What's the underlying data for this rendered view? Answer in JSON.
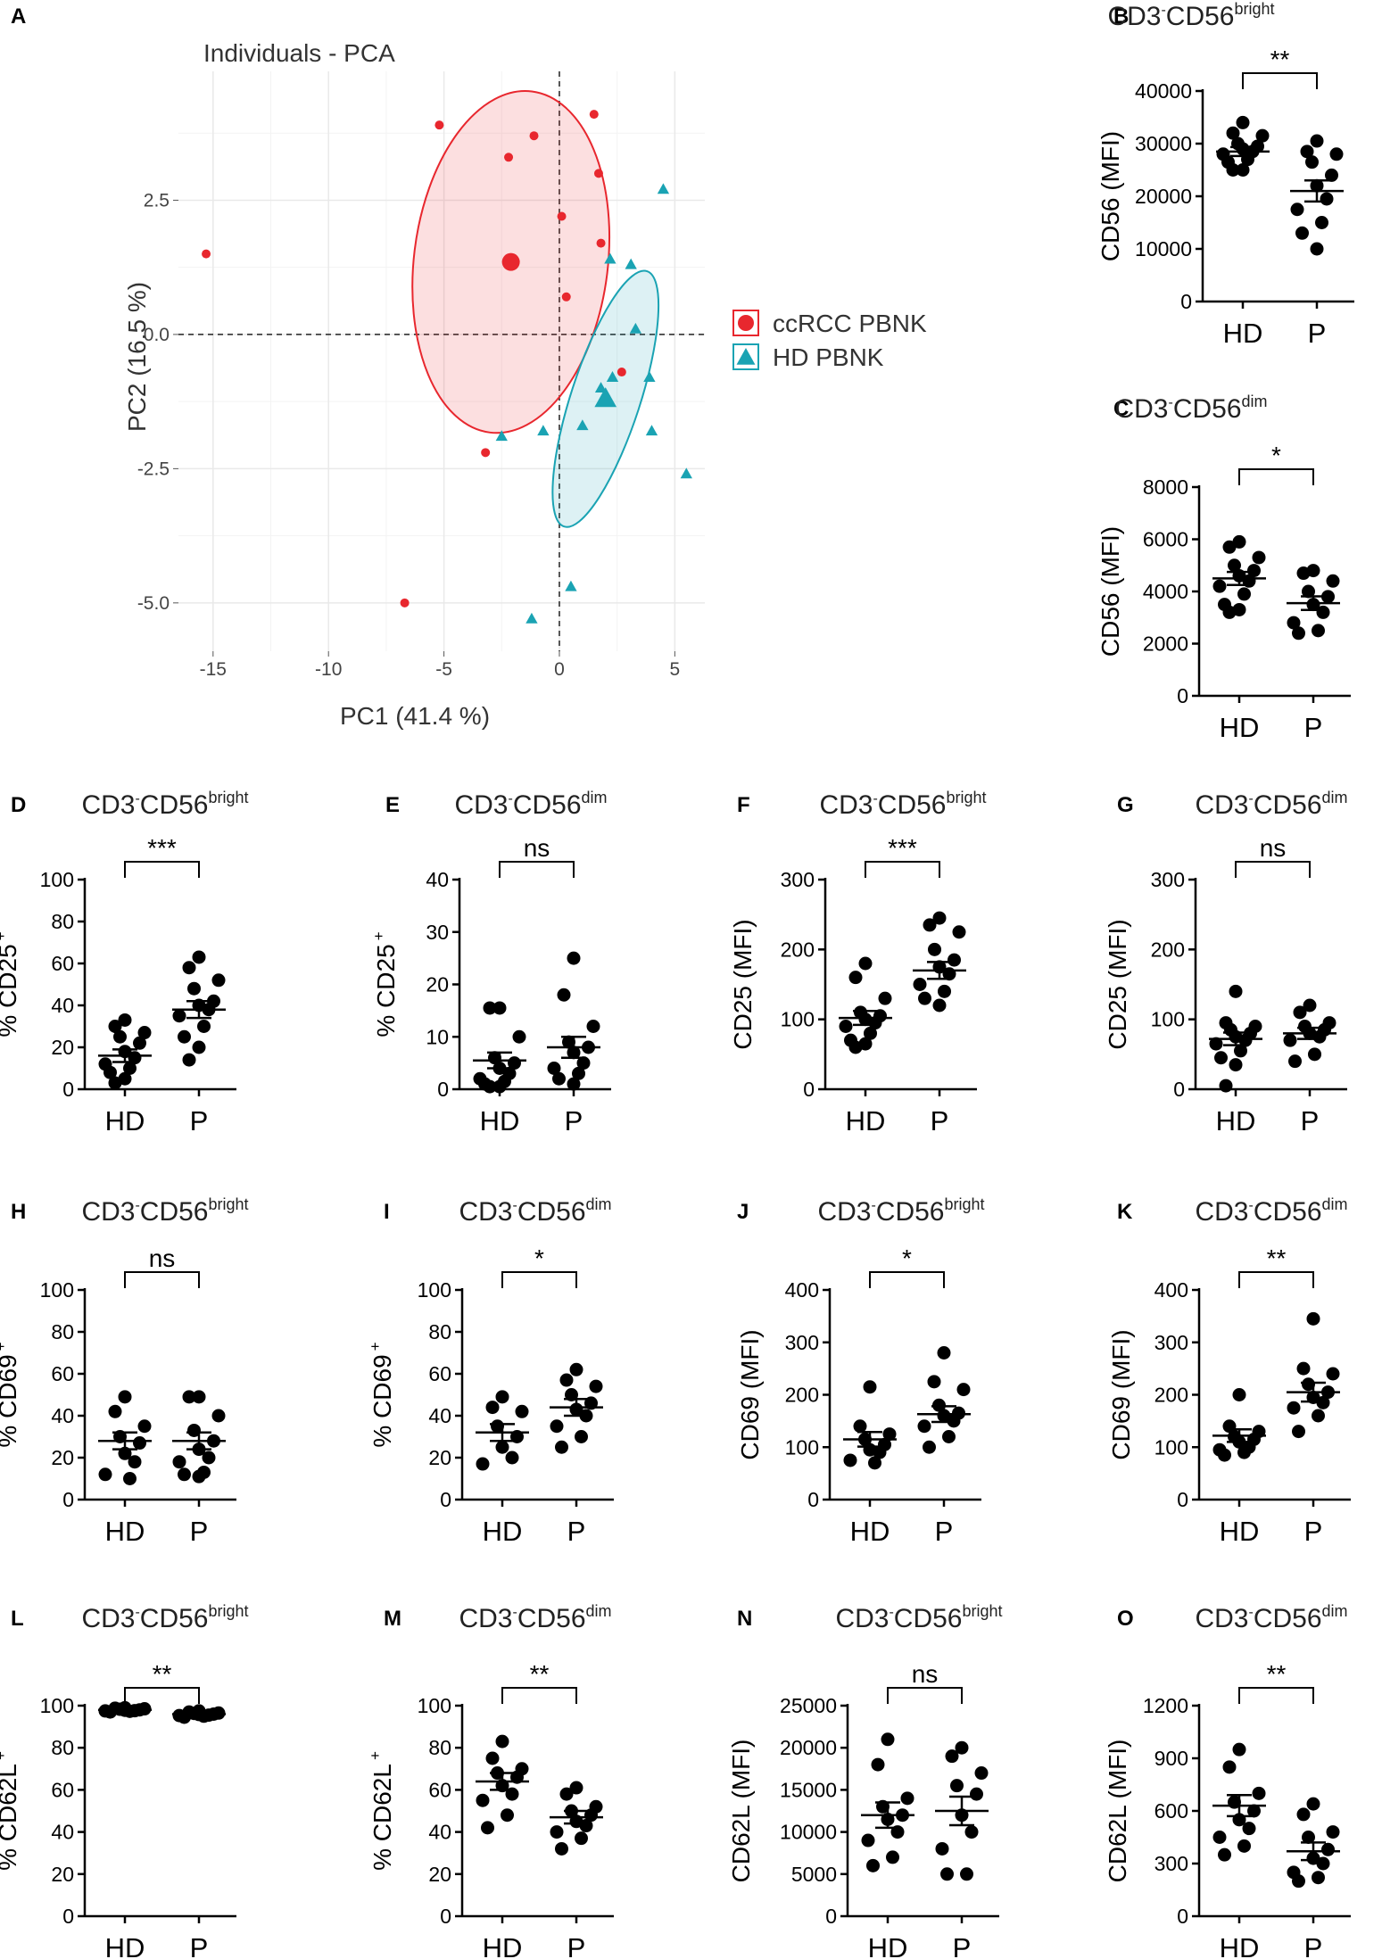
{
  "chart_data": [
    {
      "panel": "A",
      "type": "scatter",
      "title": "Individuals - PCA",
      "xlabel": "PC1 (41.4 %)",
      "ylabel": "PC2 (16.5 %)",
      "xlim": [
        -16.5,
        6.3
      ],
      "ylim": [
        -5.9,
        4.9
      ],
      "xticks": [
        -15,
        -10,
        -5,
        0,
        5
      ],
      "xtick_labels": [
        "-15",
        "-10",
        "-5",
        "0",
        "5"
      ],
      "yticks": [
        2.5,
        0,
        -2.5,
        -5
      ],
      "ytick_labels": [
        "2.5",
        "0.0",
        "-2.5",
        "-5.0"
      ],
      "colors": {
        "ccrcc": "#e8272e",
        "hd": "#1aa3b3"
      },
      "series": [
        {
          "name": "ccRCC PBNK",
          "color": "#e8272e",
          "marker": "circle",
          "x": [
            -5.2,
            -1.1,
            1.5,
            -2.2,
            1.7,
            0.1,
            1.8,
            0.3,
            2.7,
            -3.2,
            -15.3,
            -6.7
          ],
          "y": [
            3.9,
            3.7,
            4.1,
            3.3,
            3.0,
            2.2,
            1.7,
            0.7,
            -0.7,
            -2.2,
            1.5,
            -5.0
          ],
          "centroid": [
            -2.1,
            1.35
          ],
          "ellipse": {
            "cx": -2.1,
            "cy": 1.35,
            "rx": 4.2,
            "ry": 3.2,
            "angle": 7
          }
        },
        {
          "name": "HD PBNK",
          "color": "#1aa3b3",
          "marker": "triangle",
          "x": [
            4.5,
            2.2,
            3.1,
            3.3,
            2.3,
            3.9,
            1.8,
            1.0,
            -0.7,
            4.0,
            5.5,
            -2.5,
            0.5,
            -1.2
          ],
          "y": [
            2.7,
            1.4,
            1.3,
            0.1,
            -0.8,
            -0.8,
            -1.0,
            -1.7,
            -1.8,
            -1.8,
            -2.6,
            -1.9,
            -4.7,
            -5.3
          ],
          "centroid": [
            2.0,
            -1.2
          ],
          "ellipse": {
            "cx": 2.0,
            "cy": -1.2,
            "rx": 1.5,
            "ry": 2.5,
            "angle": 18
          }
        }
      ]
    },
    {
      "panel": "B",
      "type": "scatter",
      "title_main": "CD3",
      "title_sup1": "-",
      "title_mid": "CD56",
      "title_sup2": "bright",
      "ylabel_text": "CD56 (MFI)",
      "ylim": [
        0,
        40000
      ],
      "yticks": [
        0,
        10000,
        20000,
        30000,
        40000
      ],
      "ytick_labels": [
        "0",
        "10000",
        "20000",
        "30000",
        "40000"
      ],
      "categories": [
        "HD",
        "P"
      ],
      "significance": "**",
      "series": [
        {
          "name": "HD",
          "values": [
            34000,
            32000,
            31500,
            30000,
            29500,
            29000,
            28500,
            28000,
            27000,
            26500,
            25000,
            25000
          ],
          "mean": 28500,
          "sem": 850
        },
        {
          "name": "P",
          "values": [
            30500,
            28500,
            28000,
            26500,
            24000,
            22000,
            19500,
            17500,
            15000,
            13000,
            10000
          ],
          "mean": 21000,
          "sem": 2000
        }
      ]
    },
    {
      "panel": "C",
      "type": "scatter",
      "title_main": "CD3",
      "title_sup1": "-",
      "title_mid": "CD56",
      "title_sup2": "dim",
      "ylabel_text": "CD56 (MFI)",
      "ylim": [
        0,
        8000
      ],
      "yticks": [
        0,
        2000,
        4000,
        6000,
        8000
      ],
      "ytick_labels": [
        "0",
        "2000",
        "4000",
        "6000",
        "8000"
      ],
      "categories": [
        "HD",
        "P"
      ],
      "significance": "*",
      "series": [
        {
          "name": "HD",
          "values": [
            5900,
            5700,
            5300,
            5000,
            4800,
            4600,
            4400,
            4200,
            3900,
            3500,
            3300,
            3200
          ],
          "mean": 4500,
          "sem": 250
        },
        {
          "name": "P",
          "values": [
            4800,
            4700,
            4400,
            4000,
            3800,
            3500,
            3200,
            2800,
            2500,
            2400
          ],
          "mean": 3550,
          "sem": 260
        }
      ]
    },
    {
      "panel": "D",
      "type": "scatter",
      "title_main": "CD3",
      "title_sup1": "-",
      "title_mid": "CD56",
      "title_sup2": "bright",
      "ylabel_text": "% CD25",
      "ylabel_sup": "+",
      "ylim": [
        0,
        100
      ],
      "yticks": [
        0,
        20,
        40,
        60,
        80,
        100
      ],
      "ytick_labels": [
        "0",
        "20",
        "40",
        "60",
        "80",
        "100"
      ],
      "categories": [
        "HD",
        "P"
      ],
      "significance": "***",
      "series": [
        {
          "name": "HD",
          "values": [
            33,
            30,
            27,
            25,
            22,
            18,
            15,
            12,
            10,
            8,
            5,
            3
          ],
          "mean": 16,
          "sem": 3
        },
        {
          "name": "P",
          "values": [
            63,
            58,
            52,
            48,
            42,
            40,
            38,
            35,
            30,
            25,
            20,
            14
          ],
          "mean": 38,
          "sem": 4
        }
      ]
    },
    {
      "panel": "E",
      "type": "scatter",
      "title_main": "CD3",
      "title_sup1": "-",
      "title_mid": "CD56",
      "title_sup2": "dim",
      "ylabel_text": "% CD25",
      "ylabel_sup": "+",
      "ylim": [
        0,
        40
      ],
      "yticks": [
        0,
        10,
        20,
        30,
        40
      ],
      "ytick_labels": [
        "0",
        "10",
        "20",
        "30",
        "40"
      ],
      "categories": [
        "HD",
        "P"
      ],
      "significance": "ns",
      "series": [
        {
          "name": "HD",
          "values": [
            15.5,
            15.5,
            10,
            6,
            5,
            4,
            3,
            2,
            1.5,
            1,
            0.5,
            0.5
          ],
          "mean": 5.5,
          "sem": 1.5
        },
        {
          "name": "P",
          "values": [
            25,
            18,
            12,
            9,
            8,
            7,
            5,
            4,
            3,
            2,
            1
          ],
          "mean": 8,
          "sem": 2
        }
      ]
    },
    {
      "panel": "F",
      "type": "scatter",
      "title_main": "CD3",
      "title_sup1": "-",
      "title_mid": "CD56",
      "title_sup2": "bright",
      "ylabel_text": "CD25 (MFI)",
      "ylim": [
        0,
        300
      ],
      "yticks": [
        0,
        100,
        200,
        300
      ],
      "ytick_labels": [
        "0",
        "100",
        "200",
        "300"
      ],
      "categories": [
        "HD",
        "P"
      ],
      "significance": "***",
      "series": [
        {
          "name": "HD",
          "values": [
            180,
            160,
            130,
            110,
            105,
            100,
            95,
            90,
            80,
            70,
            65,
            60
          ],
          "mean": 102,
          "sem": 10
        },
        {
          "name": "P",
          "values": [
            245,
            235,
            225,
            200,
            185,
            175,
            165,
            150,
            140,
            130,
            120
          ],
          "mean": 170,
          "sem": 12
        }
      ]
    },
    {
      "panel": "G",
      "type": "scatter",
      "title_main": "CD3",
      "title_sup1": "-",
      "title_mid": "CD56",
      "title_sup2": "dim",
      "ylabel_text": "CD25 (MFI)",
      "ylim": [
        0,
        300
      ],
      "yticks": [
        0,
        100,
        200,
        300
      ],
      "ytick_labels": [
        "0",
        "100",
        "200",
        "300"
      ],
      "categories": [
        "HD",
        "P"
      ],
      "significance": "ns",
      "series": [
        {
          "name": "HD",
          "values": [
            140,
            95,
            90,
            85,
            80,
            75,
            70,
            65,
            55,
            45,
            35,
            5
          ],
          "mean": 72,
          "sem": 9
        },
        {
          "name": "P",
          "values": [
            120,
            110,
            95,
            90,
            85,
            80,
            75,
            70,
            50,
            40
          ],
          "mean": 80,
          "sem": 8
        }
      ]
    },
    {
      "panel": "H",
      "type": "scatter",
      "title_main": "CD3",
      "title_sup1": "-",
      "title_mid": "CD56",
      "title_sup2": "bright",
      "ylabel_text": "% CD69",
      "ylabel_sup": "+",
      "ylim": [
        0,
        100
      ],
      "yticks": [
        0,
        20,
        40,
        60,
        80,
        100
      ],
      "ytick_labels": [
        "0",
        "20",
        "40",
        "60",
        "80",
        "100"
      ],
      "categories": [
        "HD",
        "P"
      ],
      "significance": "ns",
      "series": [
        {
          "name": "HD",
          "values": [
            49,
            42,
            35,
            30,
            27,
            22,
            18,
            12,
            10
          ],
          "mean": 28,
          "sem": 4
        },
        {
          "name": "P",
          "values": [
            49,
            49,
            40,
            33,
            28,
            24,
            20,
            18,
            13,
            12,
            11
          ],
          "mean": 28,
          "sem": 4
        }
      ]
    },
    {
      "panel": "I",
      "type": "scatter",
      "title_main": "CD3",
      "title_sup1": "-",
      "title_mid": "CD56",
      "title_sup2": "dim",
      "ylabel_text": "% CD69",
      "ylabel_sup": "+",
      "ylim": [
        0,
        100
      ],
      "yticks": [
        0,
        20,
        40,
        60,
        80,
        100
      ],
      "ytick_labels": [
        "0",
        "20",
        "40",
        "60",
        "80",
        "100"
      ],
      "categories": [
        "HD",
        "P"
      ],
      "significance": "*",
      "series": [
        {
          "name": "HD",
          "values": [
            49,
            44,
            42,
            35,
            30,
            25,
            20,
            17
          ],
          "mean": 32,
          "sem": 4
        },
        {
          "name": "P",
          "values": [
            62,
            57,
            54,
            50,
            46,
            43,
            40,
            35,
            30,
            25
          ],
          "mean": 44,
          "sem": 4
        }
      ]
    },
    {
      "panel": "J",
      "type": "scatter",
      "title_main": "CD3",
      "title_sup1": "-",
      "title_mid": "CD56",
      "title_sup2": "bright",
      "ylabel_text": "CD69 (MFI)",
      "ylim": [
        0,
        400
      ],
      "yticks": [
        0,
        100,
        200,
        300,
        400
      ],
      "ytick_labels": [
        "0",
        "100",
        "200",
        "300",
        "400"
      ],
      "categories": [
        "HD",
        "P"
      ],
      "significance": "*",
      "series": [
        {
          "name": "HD",
          "values": [
            215,
            140,
            125,
            115,
            105,
            95,
            90,
            75,
            70
          ],
          "mean": 115,
          "sem": 14
        },
        {
          "name": "P",
          "values": [
            280,
            225,
            210,
            180,
            165,
            160,
            150,
            140,
            120,
            100
          ],
          "mean": 163,
          "sem": 15
        }
      ]
    },
    {
      "panel": "K",
      "type": "scatter",
      "title_main": "CD3",
      "title_sup1": "-",
      "title_mid": "CD56",
      "title_sup2": "dim",
      "ylabel_text": "CD69 (MFI)",
      "ylim": [
        0,
        400
      ],
      "yticks": [
        0,
        100,
        200,
        300,
        400
      ],
      "ytick_labels": [
        "0",
        "100",
        "200",
        "300",
        "400"
      ],
      "categories": [
        "HD",
        "P"
      ],
      "significance": "**",
      "series": [
        {
          "name": "HD",
          "values": [
            200,
            140,
            130,
            120,
            115,
            110,
            100,
            95,
            90,
            85
          ],
          "mean": 122,
          "sem": 12
        },
        {
          "name": "P",
          "values": [
            345,
            250,
            240,
            220,
            205,
            195,
            185,
            175,
            160,
            130
          ],
          "mean": 205,
          "sem": 18
        }
      ]
    },
    {
      "panel": "L",
      "type": "scatter",
      "title_main": "CD3",
      "title_sup1": "-",
      "title_mid": "CD56",
      "title_sup2": "bright",
      "ylabel_text": "% CD62L",
      "ylabel_sup": "+",
      "ylim": [
        0,
        100
      ],
      "yticks": [
        0,
        20,
        40,
        60,
        80,
        100
      ],
      "ytick_labels": [
        "0",
        "20",
        "40",
        "60",
        "80",
        "100"
      ],
      "categories": [
        "HD",
        "P"
      ],
      "significance": "**",
      "series": [
        {
          "name": "HD",
          "values": [
            99,
            98.8,
            98.5,
            98.3,
            98,
            97.8,
            97.6,
            97.5,
            97.3,
            97
          ],
          "mean": 98,
          "sem": 0.3
        },
        {
          "name": "P",
          "values": [
            97.5,
            97,
            96.5,
            96.3,
            96,
            95.8,
            95.5,
            95.3,
            95,
            94.5
          ],
          "mean": 96,
          "sem": 0.3
        }
      ]
    },
    {
      "panel": "M",
      "type": "scatter",
      "title_main": "CD3",
      "title_sup1": "-",
      "title_mid": "CD56",
      "title_sup2": "dim",
      "ylabel_text": "% CD62L",
      "ylabel_sup": "+",
      "ylim": [
        0,
        100
      ],
      "yticks": [
        0,
        20,
        40,
        60,
        80,
        100
      ],
      "ytick_labels": [
        "0",
        "20",
        "40",
        "60",
        "80",
        "100"
      ],
      "categories": [
        "HD",
        "P"
      ],
      "significance": "**",
      "series": [
        {
          "name": "HD",
          "values": [
            83,
            75,
            70,
            68,
            66,
            62,
            58,
            55,
            48,
            42
          ],
          "mean": 64,
          "sem": 4
        },
        {
          "name": "P",
          "values": [
            61,
            58,
            52,
            50,
            48,
            45,
            43,
            40,
            37,
            32
          ],
          "mean": 47,
          "sem": 3
        }
      ]
    },
    {
      "panel": "N",
      "type": "scatter",
      "title_main": "CD3",
      "title_sup1": "-",
      "title_mid": "CD56",
      "title_sup2": "bright",
      "ylabel_text": "CD62L (MFI)",
      "ylim": [
        0,
        25000
      ],
      "yticks": [
        0,
        5000,
        10000,
        15000,
        20000,
        25000
      ],
      "ytick_labels": [
        "0",
        "5000",
        "10000",
        "15000",
        "20000",
        "25000"
      ],
      "categories": [
        "HD",
        "P"
      ],
      "significance": "ns",
      "series": [
        {
          "name": "HD",
          "values": [
            21000,
            18000,
            14000,
            13000,
            12000,
            11500,
            10000,
            9000,
            7000,
            6000
          ],
          "mean": 12000,
          "sem": 1500
        },
        {
          "name": "P",
          "values": [
            20000,
            19000,
            17000,
            15500,
            14500,
            12000,
            10000,
            8000,
            5000,
            5000
          ],
          "mean": 12500,
          "sem": 1700
        }
      ]
    },
    {
      "panel": "O",
      "type": "scatter",
      "title_main": "CD3",
      "title_sup1": "-",
      "title_mid": "CD56",
      "title_sup2": "dim",
      "ylabel_text": "CD62L (MFI)",
      "ylim": [
        0,
        1200
      ],
      "yticks": [
        0,
        300,
        600,
        900,
        1200
      ],
      "ytick_labels": [
        "0",
        "300",
        "600",
        "900",
        "1200"
      ],
      "categories": [
        "HD",
        "P"
      ],
      "significance": "**",
      "series": [
        {
          "name": "HD",
          "values": [
            950,
            850,
            700,
            650,
            600,
            550,
            500,
            450,
            400,
            350
          ],
          "mean": 630,
          "sem": 60
        },
        {
          "name": "P",
          "values": [
            640,
            580,
            480,
            450,
            380,
            330,
            300,
            250,
            220,
            200
          ],
          "mean": 370,
          "sem": 50
        }
      ]
    }
  ]
}
